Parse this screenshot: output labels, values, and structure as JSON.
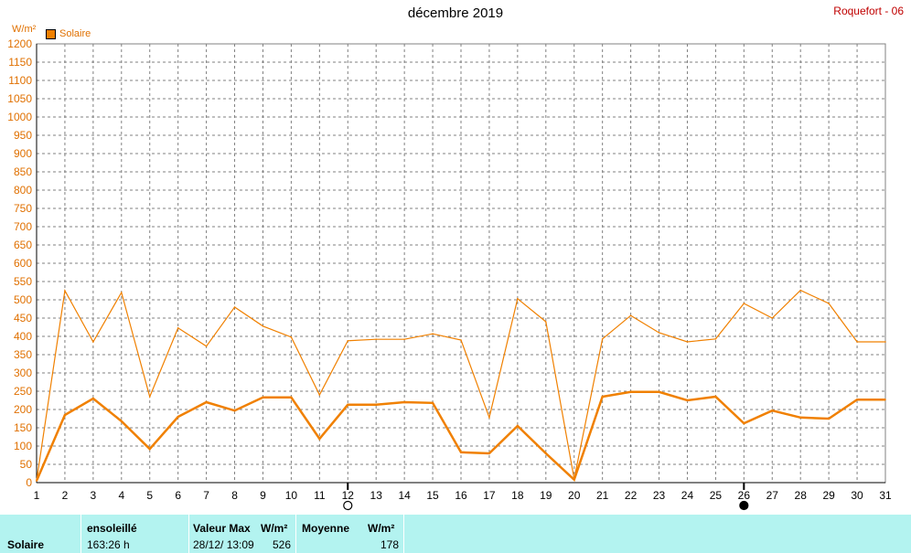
{
  "header": {
    "title": "décembre 2019",
    "station": "Roquefort - 06",
    "unit": "W/m²",
    "legend_label": "Solaire"
  },
  "colors": {
    "series": "#f08000",
    "grid": "#808080",
    "axis_text": "#e07000",
    "station": "#c00000",
    "footer_bg": "#b3f3f0"
  },
  "chart_data": {
    "type": "line",
    "xlim": [
      1,
      31
    ],
    "ylim": [
      0,
      1200
    ],
    "ystep": 50,
    "grid": true,
    "x": [
      1,
      2,
      3,
      4,
      5,
      6,
      7,
      8,
      9,
      10,
      11,
      12,
      13,
      14,
      15,
      16,
      17,
      18,
      19,
      20,
      21,
      22,
      23,
      24,
      25,
      26,
      27,
      28,
      29,
      30,
      31
    ],
    "series": [
      {
        "name": "Solaire",
        "style": "max",
        "values": [
          5,
          525,
          385,
          520,
          235,
          423,
          373,
          480,
          428,
          398,
          240,
          388,
          392,
          392,
          407,
          390,
          178,
          503,
          440,
          10,
          393,
          457,
          410,
          385,
          393,
          490,
          450,
          526,
          490,
          385,
          385
        ]
      },
      {
        "name": "Solaire",
        "style": "mean",
        "values": [
          5,
          185,
          230,
          168,
          92,
          180,
          220,
          197,
          233,
          233,
          120,
          213,
          213,
          220,
          218,
          83,
          80,
          155,
          80,
          8,
          235,
          248,
          248,
          225,
          235,
          162,
          197,
          178,
          175,
          227,
          227
        ]
      }
    ],
    "moon_markers": [
      {
        "day": 12,
        "phase": "full-moon"
      },
      {
        "day": 26,
        "phase": "new-moon"
      }
    ]
  },
  "footer": {
    "row_label": "Solaire",
    "sun_header": "ensoleillé",
    "sun_value": "163:26 h",
    "max_header": "Valeur Max",
    "max_unit": "W/m²",
    "max_date": "28/12/  13:09",
    "max_value": "526",
    "mean_header": "Moyenne",
    "mean_unit": "W/m²",
    "mean_value": "178"
  }
}
